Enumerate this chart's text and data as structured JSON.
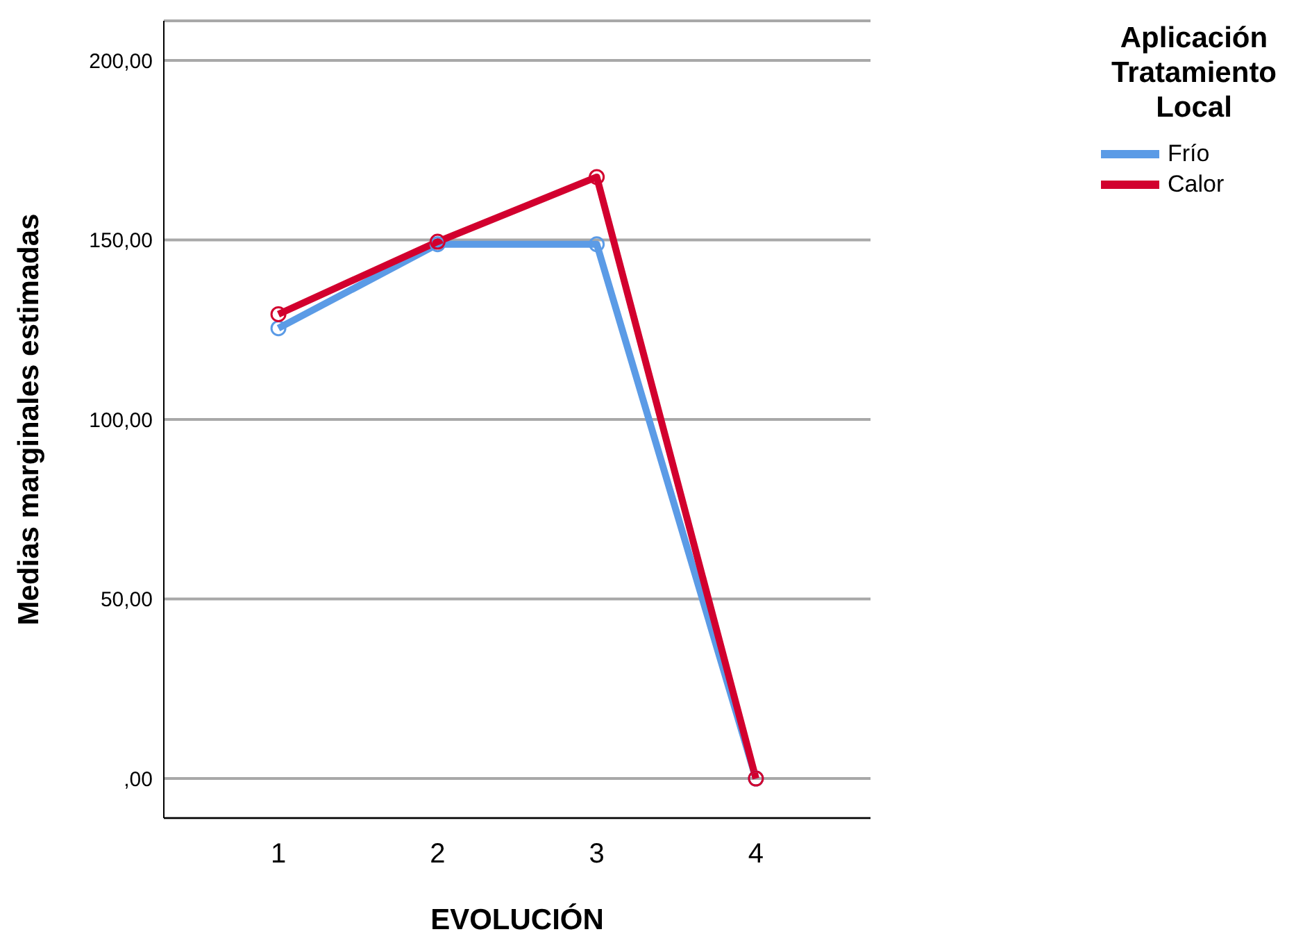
{
  "chart_data": {
    "type": "line",
    "xlabel": "EVOLUCIÓN",
    "ylabel": "Medias marginales estimadas",
    "legend_title": "Aplicación Tratamiento Local",
    "categories": [
      "1",
      "2",
      "3",
      "4"
    ],
    "series": [
      {
        "name": "Frío",
        "color": "#5b9be6",
        "values": [
          125.4,
          148.8,
          148.8,
          0
        ]
      },
      {
        "name": "Calor",
        "color": "#d2002e",
        "values": [
          129.3,
          149.5,
          167.5,
          0
        ]
      }
    ],
    "ylim": [
      -11,
      211
    ],
    "yticks": [
      {
        "value": 0,
        "label": ",00"
      },
      {
        "value": 50,
        "label": "50,00"
      },
      {
        "value": 100,
        "label": "100,00"
      },
      {
        "value": 150,
        "label": "150,00"
      },
      {
        "value": 200,
        "label": "200,00"
      }
    ],
    "grid": "y",
    "legend": "top right",
    "marker": "circle",
    "line_style": "solid"
  }
}
